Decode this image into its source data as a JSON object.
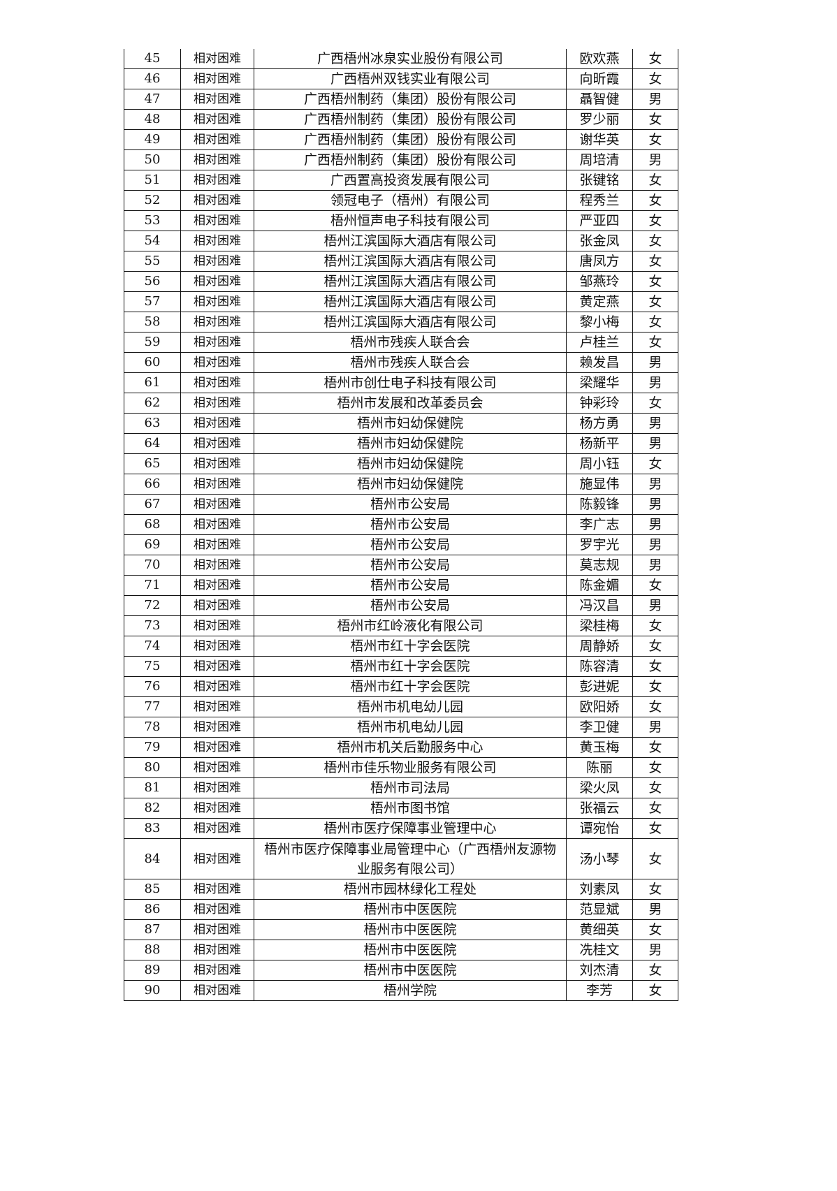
{
  "rows": [
    [
      "45",
      "相对困难",
      "广西梧州冰泉实业股份有限公司",
      "欧欢燕",
      "女"
    ],
    [
      "46",
      "相对困难",
      "广西梧州双钱实业有限公司",
      "向昕霞",
      "女"
    ],
    [
      "47",
      "相对困难",
      "广西梧州制药（集团）股份有限公司",
      "聶智健",
      "男"
    ],
    [
      "48",
      "相对困难",
      "广西梧州制药（集团）股份有限公司",
      "罗少丽",
      "女"
    ],
    [
      "49",
      "相对困难",
      "广西梧州制药（集团）股份有限公司",
      "谢华英",
      "女"
    ],
    [
      "50",
      "相对困难",
      "广西梧州制药（集团）股份有限公司",
      "周培清",
      "男"
    ],
    [
      "51",
      "相对困难",
      "广西置高投资发展有限公司",
      "张键铭",
      "女"
    ],
    [
      "52",
      "相对困难",
      "领冠电子（梧州）有限公司",
      "程秀兰",
      "女"
    ],
    [
      "53",
      "相对困难",
      "梧州恒声电子科技有限公司",
      "严亚四",
      "女"
    ],
    [
      "54",
      "相对困难",
      "梧州江滨国际大酒店有限公司",
      "张金凤",
      "女"
    ],
    [
      "55",
      "相对困难",
      "梧州江滨国际大酒店有限公司",
      "唐凤方",
      "女"
    ],
    [
      "56",
      "相对困难",
      "梧州江滨国际大酒店有限公司",
      "邹燕玲",
      "女"
    ],
    [
      "57",
      "相对困难",
      "梧州江滨国际大酒店有限公司",
      "黄定燕",
      "女"
    ],
    [
      "58",
      "相对困难",
      "梧州江滨国际大酒店有限公司",
      "黎小梅",
      "女"
    ],
    [
      "59",
      "相对困难",
      "梧州市残疾人联合会",
      "卢桂兰",
      "女"
    ],
    [
      "60",
      "相对困难",
      "梧州市残疾人联合会",
      "赖发昌",
      "男"
    ],
    [
      "61",
      "相对困难",
      "梧州市创仕电子科技有限公司",
      "梁耀华",
      "男"
    ],
    [
      "62",
      "相对困难",
      "梧州市发展和改革委员会",
      "钟彩玲",
      "女"
    ],
    [
      "63",
      "相对困难",
      "梧州市妇幼保健院",
      "杨方勇",
      "男"
    ],
    [
      "64",
      "相对困难",
      "梧州市妇幼保健院",
      "杨新平",
      "男"
    ],
    [
      "65",
      "相对困难",
      "梧州市妇幼保健院",
      "周小钰",
      "女"
    ],
    [
      "66",
      "相对困难",
      "梧州市妇幼保健院",
      "施显伟",
      "男"
    ],
    [
      "67",
      "相对困难",
      "梧州市公安局",
      "陈毅锋",
      "男"
    ],
    [
      "68",
      "相对困难",
      "梧州市公安局",
      "李广志",
      "男"
    ],
    [
      "69",
      "相对困难",
      "梧州市公安局",
      "罗宇光",
      "男"
    ],
    [
      "70",
      "相对困难",
      "梧州市公安局",
      "莫志规",
      "男"
    ],
    [
      "71",
      "相对困难",
      "梧州市公安局",
      "陈金媚",
      "女"
    ],
    [
      "72",
      "相对困难",
      "梧州市公安局",
      "冯汉昌",
      "男"
    ],
    [
      "73",
      "相对困难",
      "梧州市红岭液化有限公司",
      "梁桂梅",
      "女"
    ],
    [
      "74",
      "相对困难",
      "梧州市红十字会医院",
      "周静娇",
      "女"
    ],
    [
      "75",
      "相对困难",
      "梧州市红十字会医院",
      "陈容清",
      "女"
    ],
    [
      "76",
      "相对困难",
      "梧州市红十字会医院",
      "彭进妮",
      "女"
    ],
    [
      "77",
      "相对困难",
      "梧州市机电幼儿园",
      "欧阳娇",
      "女"
    ],
    [
      "78",
      "相对困难",
      "梧州市机电幼儿园",
      "李卫健",
      "男"
    ],
    [
      "79",
      "相对困难",
      "梧州市机关后勤服务中心",
      "黄玉梅",
      "女"
    ],
    [
      "80",
      "相对困难",
      "梧州市佳乐物业服务有限公司",
      "陈丽",
      "女"
    ],
    [
      "81",
      "相对困难",
      "梧州市司法局",
      "梁火凤",
      "女"
    ],
    [
      "82",
      "相对困难",
      "梧州市图书馆",
      "张福云",
      "女"
    ],
    [
      "83",
      "相对困难",
      "梧州市医疗保障事业管理中心",
      "谭宛怡",
      "女"
    ],
    [
      "84",
      "相对困难",
      "梧州市医疗保障事业局管理中心（广西梧州友源物业服务有限公司）",
      "汤小琴",
      "女"
    ],
    [
      "85",
      "相对困难",
      "梧州市园林绿化工程处",
      "刘素凤",
      "女"
    ],
    [
      "86",
      "相对困难",
      "梧州市中医医院",
      "范显斌",
      "男"
    ],
    [
      "87",
      "相对困难",
      "梧州市中医医院",
      "黄细英",
      "女"
    ],
    [
      "88",
      "相对困难",
      "梧州市中医医院",
      "冼桂文",
      "男"
    ],
    [
      "89",
      "相对困难",
      "梧州市中医医院",
      "刘杰清",
      "女"
    ],
    [
      "90",
      "相对困难",
      "梧州学院",
      "李芳",
      "女"
    ]
  ]
}
